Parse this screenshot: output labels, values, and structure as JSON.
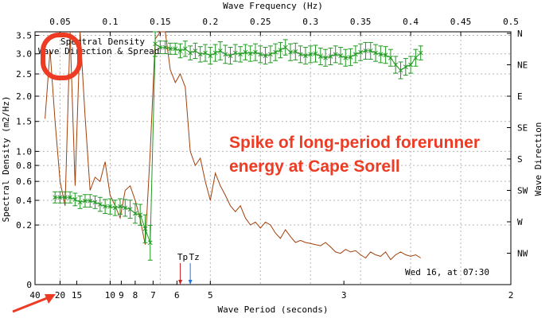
{
  "chart_data": {
    "type": "line",
    "top_axis": {
      "label": "Wave Frequency (Hz)",
      "ticks": [
        "0.05",
        "0.1",
        "0.15",
        "0.2",
        "0.25",
        "0.3",
        "0.35",
        "0.4",
        "0.45",
        "0.5"
      ],
      "values": [
        0.05,
        0.1,
        0.15,
        0.2,
        0.25,
        0.3,
        0.35,
        0.4,
        0.45,
        0.5
      ],
      "range": [
        0.025,
        0.5
      ]
    },
    "bottom_axis": {
      "label": "Wave Period (seconds)",
      "ticks": [
        "40",
        "20",
        "15",
        "10",
        "9",
        "8",
        "7",
        "6",
        "5",
        "3",
        "2"
      ],
      "values": [
        40,
        20,
        15,
        10,
        9,
        8,
        7,
        6,
        5,
        3,
        2
      ]
    },
    "left_axis": {
      "label": "Spectral Density (m2/Hz)",
      "ticks": [
        "0",
        "0.2",
        "0.4",
        "0.6",
        "0.8",
        "1.0",
        "1.5",
        "2.0",
        "2.5",
        "3.0",
        "3.5"
      ],
      "values": [
        0,
        0.2,
        0.4,
        0.6,
        0.8,
        1.0,
        1.5,
        2.0,
        2.5,
        3.0,
        3.5
      ],
      "scale": "sqrt",
      "range": [
        0,
        3.6
      ]
    },
    "right_axis": {
      "label": "Wave Direction",
      "ticks": [
        "N",
        "NE",
        "E",
        "SE",
        "S",
        "SW",
        "W",
        "NW"
      ]
    },
    "legend": {
      "position": "top-left",
      "entries": [
        {
          "label": "Spectral Density",
          "color": "#a0400a"
        },
        {
          "label": "Wave Direction & Spread",
          "color": "#229922"
        }
      ]
    },
    "series": [
      {
        "name": "Spectral Density",
        "color": "#a0400a",
        "x": [
          0.035,
          0.04,
          0.045,
          0.05,
          0.055,
          0.06,
          0.065,
          0.07,
          0.075,
          0.08,
          0.085,
          0.09,
          0.095,
          0.1,
          0.105,
          0.11,
          0.115,
          0.12,
          0.125,
          0.13,
          0.135,
          0.14,
          0.145,
          0.15,
          0.155,
          0.16,
          0.165,
          0.17,
          0.175,
          0.18,
          0.185,
          0.19,
          0.195,
          0.2,
          0.205,
          0.21,
          0.215,
          0.22,
          0.225,
          0.23,
          0.235,
          0.24,
          0.245,
          0.25,
          0.255,
          0.26,
          0.265,
          0.27,
          0.275,
          0.28,
          0.285,
          0.29,
          0.295,
          0.3,
          0.305,
          0.31,
          0.315,
          0.32,
          0.325,
          0.33,
          0.335,
          0.34,
          0.345,
          0.35,
          0.355,
          0.36,
          0.365,
          0.37,
          0.375,
          0.38,
          0.385,
          0.39,
          0.395,
          0.4,
          0.405,
          0.41
        ],
        "y": [
          1.55,
          3.1,
          1.5,
          0.6,
          0.35,
          3.6,
          0.55,
          3.6,
          1.6,
          0.5,
          0.65,
          0.6,
          0.85,
          0.45,
          0.35,
          0.25,
          0.5,
          0.55,
          0.4,
          0.24,
          0.09,
          1.0,
          3.4,
          3.6,
          3.6,
          2.6,
          2.3,
          2.5,
          2.2,
          1.0,
          0.8,
          0.9,
          0.6,
          0.4,
          0.7,
          0.55,
          0.45,
          0.35,
          0.3,
          0.35,
          0.25,
          0.2,
          0.22,
          0.18,
          0.22,
          0.2,
          0.15,
          0.12,
          0.17,
          0.13,
          0.1,
          0.11,
          0.1,
          0.095,
          0.09,
          0.085,
          0.1,
          0.08,
          0.06,
          0.055,
          0.07,
          0.06,
          0.065,
          0.05,
          0.04,
          0.06,
          0.05,
          0.045,
          0.06,
          0.035,
          0.05,
          0.06,
          0.05,
          0.045,
          0.05,
          0.04
        ]
      },
      {
        "name": "Wave Direction & Spread",
        "color": "#229922",
        "x": [
          0.045,
          0.05,
          0.055,
          0.06,
          0.065,
          0.07,
          0.075,
          0.08,
          0.085,
          0.09,
          0.095,
          0.1,
          0.105,
          0.11,
          0.115,
          0.12,
          0.125,
          0.13,
          0.135,
          0.14,
          0.145,
          0.15,
          0.155,
          0.16,
          0.165,
          0.17,
          0.175,
          0.18,
          0.185,
          0.19,
          0.195,
          0.2,
          0.205,
          0.21,
          0.215,
          0.22,
          0.225,
          0.23,
          0.235,
          0.24,
          0.245,
          0.25,
          0.255,
          0.26,
          0.265,
          0.27,
          0.275,
          0.28,
          0.285,
          0.29,
          0.295,
          0.3,
          0.305,
          0.31,
          0.315,
          0.32,
          0.325,
          0.33,
          0.335,
          0.34,
          0.345,
          0.35,
          0.355,
          0.36,
          0.365,
          0.37,
          0.375,
          0.38,
          0.385,
          0.39,
          0.395,
          0.4,
          0.405,
          0.41
        ],
        "direction_deg": [
          235,
          235,
          235,
          235,
          238,
          242,
          240,
          240,
          242,
          245,
          248,
          248,
          250,
          248,
          250,
          252,
          258,
          260,
          280,
          300,
          15,
          20,
          20,
          22,
          22,
          25,
          22,
          28,
          25,
          30,
          28,
          32,
          28,
          25,
          30,
          32,
          28,
          30,
          27,
          29,
          27,
          30,
          32,
          30,
          27,
          24,
          20,
          27,
          26,
          30,
          32,
          30,
          29,
          33,
          35,
          33,
          30,
          32,
          35,
          34,
          30,
          27,
          25,
          25,
          28,
          30,
          31,
          35,
          45,
          53,
          48,
          45,
          35,
          28
        ],
        "spread_deg": [
          8,
          8,
          8,
          8,
          9,
          9,
          9,
          9,
          9,
          10,
          10,
          11,
          11,
          11,
          12,
          13,
          14,
          15,
          20,
          25,
          18,
          9,
          9,
          8,
          8,
          10,
          11,
          10,
          11,
          11,
          12,
          12,
          12,
          13,
          13,
          12,
          12,
          11,
          11,
          11,
          12,
          12,
          12,
          12,
          12,
          11,
          11,
          12,
          12,
          12,
          12,
          12,
          12,
          12,
          12,
          12,
          12,
          12,
          12,
          12,
          12,
          12,
          12,
          12,
          12,
          12,
          12,
          12,
          12,
          12,
          12,
          12,
          12,
          10
        ]
      }
    ],
    "markers": [
      {
        "label": "Tp",
        "x": 0.17,
        "color": "#cc2222"
      },
      {
        "label": "Tz",
        "x": 0.18,
        "color": "#2277dd"
      }
    ],
    "timestamp": "Wed 16, at 07:30"
  },
  "annotation": {
    "text_line1": "Spike of long-period forerunner",
    "text_line2": "energy at Cape Sorell",
    "color": "#ee3b24"
  }
}
